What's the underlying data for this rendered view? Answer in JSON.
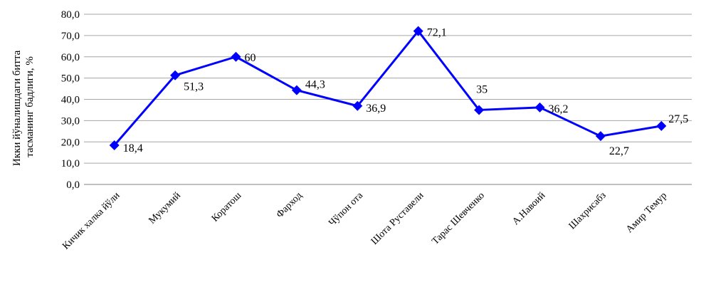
{
  "chart_data": {
    "type": "line",
    "categories": [
      "Кичик халка йўли",
      "Мукумий",
      "Коратош",
      "Фарход",
      "Чўпон ота",
      "Шота Руставели",
      "Тарас Шевченко",
      "А.Навоий",
      "Шахрисабз",
      "Амир Темур"
    ],
    "values": [
      18.4,
      51.3,
      60,
      44.3,
      36.9,
      72.1,
      35,
      36.2,
      22.7,
      27.5
    ],
    "data_labels": [
      "18,4",
      "51,3",
      "60",
      "44,3",
      "36,9",
      "72,1",
      "35",
      "36,2",
      "22,7",
      "27,5"
    ],
    "y_ticks": [
      "0,0",
      "10,0",
      "20,0",
      "30,0",
      "40,0",
      "50,0",
      "60,0",
      "70,0",
      "80,0"
    ],
    "ylabel_lines": [
      "Икки йўналишдаги битта",
      "тасманинг бадлиги, %"
    ],
    "ylim": [
      0,
      80
    ],
    "grid": true,
    "legend": "none",
    "colors": {
      "series": "#0000ff",
      "grid": "#a6a6a6",
      "axis": "#808080"
    }
  }
}
